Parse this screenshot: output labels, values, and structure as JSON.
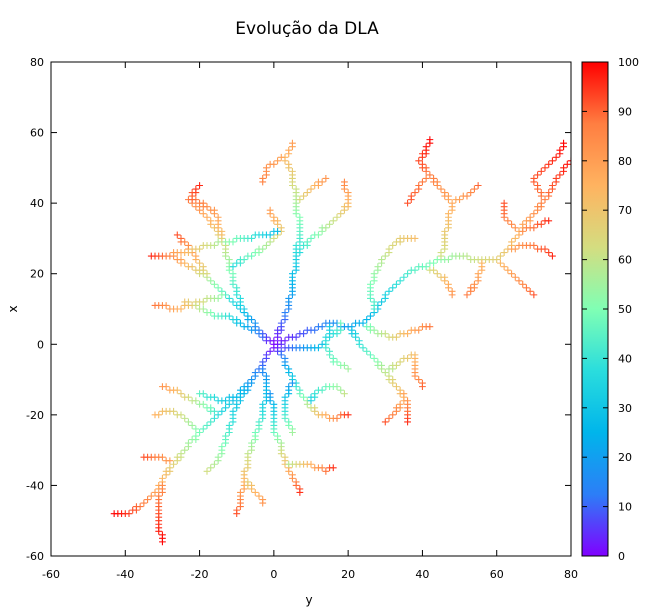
{
  "chart_data": {
    "type": "scatter",
    "title": "Evolução da DLA",
    "xlabel": "y",
    "ylabel": "x",
    "xlim": [
      -60,
      80
    ],
    "ylim": [
      -60,
      80
    ],
    "x_ticks": [
      -60,
      -40,
      -20,
      0,
      20,
      40,
      60,
      80
    ],
    "y_ticks": [
      -60,
      -40,
      -20,
      0,
      20,
      40,
      60,
      80
    ],
    "marker": "+",
    "grid": false,
    "colorbar": {
      "range": [
        0,
        100
      ],
      "ticks": [
        0,
        10,
        20,
        30,
        40,
        50,
        60,
        70,
        80,
        90,
        100
      ],
      "colormap": "rainbow",
      "stops": [
        "#8000ff",
        "#2c7ef7",
        "#00b5eb",
        "#2adddd",
        "#80ffb4",
        "#d4dd80",
        "#ffb360",
        "#ff7e41",
        "#ff0000"
      ]
    },
    "branches": [
      {
        "path": [
          [
            0,
            0
          ],
          [
            -4,
            4
          ],
          [
            -8,
            9
          ],
          [
            -13,
            14
          ],
          [
            -18,
            19
          ],
          [
            -23,
            22
          ],
          [
            -28,
            25
          ],
          [
            -33,
            25
          ]
        ],
        "t0": 0,
        "t1": 96
      },
      {
        "path": [
          [
            -13,
            14
          ],
          [
            -20,
            12
          ],
          [
            -26,
            10
          ],
          [
            -32,
            11
          ]
        ],
        "t0": 50,
        "t1": 88
      },
      {
        "path": [
          [
            -18,
            19
          ],
          [
            -22,
            26
          ],
          [
            -26,
            31
          ]
        ],
        "t0": 62,
        "t1": 92
      },
      {
        "path": [
          [
            -8,
            9
          ],
          [
            -10,
            15
          ],
          [
            -12,
            22
          ],
          [
            -14,
            30
          ],
          [
            -18,
            36
          ],
          [
            -23,
            41
          ],
          [
            -20,
            45
          ]
        ],
        "t0": 30,
        "t1": 96
      },
      {
        "path": [
          [
            -14,
            30
          ],
          [
            -16,
            38
          ],
          [
            -22,
            41
          ]
        ],
        "t0": 70,
        "t1": 90
      },
      {
        "path": [
          [
            -12,
            22
          ],
          [
            -6,
            25
          ],
          [
            -2,
            28
          ],
          [
            2,
            32
          ],
          [
            -1,
            38
          ]
        ],
        "t0": 35,
        "t1": 80
      },
      {
        "path": [
          [
            0,
            0
          ],
          [
            3,
            8
          ],
          [
            5,
            16
          ],
          [
            6,
            25
          ],
          [
            7,
            33
          ],
          [
            6,
            40
          ],
          [
            5,
            48
          ],
          [
            3,
            53
          ],
          [
            5,
            57
          ]
        ],
        "t0": 0,
        "t1": 80
      },
      {
        "path": [
          [
            6,
            25
          ],
          [
            10,
            30
          ],
          [
            15,
            34
          ],
          [
            18,
            37
          ],
          [
            20,
            40
          ],
          [
            19,
            46
          ]
        ],
        "t0": 35,
        "t1": 85
      },
      {
        "path": [
          [
            6,
            40
          ],
          [
            10,
            44
          ],
          [
            14,
            47
          ]
        ],
        "t0": 62,
        "t1": 82
      },
      {
        "path": [
          [
            3,
            53
          ],
          [
            -2,
            50
          ],
          [
            -3,
            46
          ]
        ],
        "t0": 78,
        "t1": 86
      },
      {
        "path": [
          [
            2,
            32
          ],
          [
            -3,
            31
          ],
          [
            -8,
            30
          ],
          [
            -13,
            29
          ],
          [
            -18,
            28
          ],
          [
            -24,
            26
          ],
          [
            -30,
            25
          ]
        ],
        "t0": 25,
        "t1": 85
      },
      {
        "path": [
          [
            0,
            0
          ],
          [
            -4,
            3
          ],
          [
            -8,
            5
          ],
          [
            -12,
            8
          ],
          [
            -16,
            8
          ],
          [
            -20,
            10
          ],
          [
            -24,
            12
          ]
        ],
        "t0": 0,
        "t1": 70
      },
      {
        "path": [
          [
            0,
            0
          ],
          [
            5,
            2
          ],
          [
            10,
            4
          ],
          [
            15,
            6
          ],
          [
            20,
            5
          ],
          [
            24,
            6
          ],
          [
            27,
            9
          ],
          [
            30,
            14
          ],
          [
            33,
            17
          ],
          [
            36,
            20
          ],
          [
            40,
            22
          ],
          [
            45,
            24
          ],
          [
            50,
            25
          ],
          [
            55,
            24
          ],
          [
            60,
            24
          ],
          [
            63,
            27
          ],
          [
            66,
            32
          ],
          [
            70,
            37
          ],
          [
            73,
            41
          ],
          [
            75,
            45
          ],
          [
            78,
            50
          ],
          [
            80,
            52
          ]
        ],
        "t0": 0,
        "t1": 100
      },
      {
        "path": [
          [
            27,
            9
          ],
          [
            26,
            16
          ],
          [
            28,
            22
          ],
          [
            32,
            28
          ],
          [
            35,
            30
          ],
          [
            38,
            30
          ]
        ],
        "t0": 40,
        "t1": 72
      },
      {
        "path": [
          [
            40,
            22
          ],
          [
            44,
            20
          ],
          [
            47,
            17
          ],
          [
            48,
            14
          ]
        ],
        "t0": 58,
        "t1": 82
      },
      {
        "path": [
          [
            45,
            24
          ],
          [
            46,
            30
          ],
          [
            47,
            36
          ],
          [
            48,
            40
          ],
          [
            45,
            44
          ],
          [
            42,
            48
          ],
          [
            39,
            52
          ],
          [
            41,
            55
          ],
          [
            42,
            58
          ]
        ],
        "t0": 60,
        "t1": 100
      },
      {
        "path": [
          [
            48,
            40
          ],
          [
            52,
            42
          ],
          [
            55,
            45
          ]
        ],
        "t0": 76,
        "t1": 90
      },
      {
        "path": [
          [
            42,
            48
          ],
          [
            39,
            45
          ],
          [
            36,
            40
          ]
        ],
        "t0": 86,
        "t1": 92
      },
      {
        "path": [
          [
            60,
            24
          ],
          [
            64,
            20
          ],
          [
            68,
            16
          ],
          [
            70,
            14
          ]
        ],
        "t0": 72,
        "t1": 92
      },
      {
        "path": [
          [
            63,
            27
          ],
          [
            68,
            28
          ],
          [
            72,
            27
          ],
          [
            75,
            25
          ]
        ],
        "t0": 78,
        "t1": 96
      },
      {
        "path": [
          [
            66,
            32
          ],
          [
            70,
            33
          ],
          [
            74,
            35
          ]
        ],
        "t0": 82,
        "t1": 96
      },
      {
        "path": [
          [
            72,
            42
          ],
          [
            70,
            47
          ],
          [
            74,
            51
          ],
          [
            77,
            54
          ],
          [
            78,
            57
          ]
        ],
        "t0": 88,
        "t1": 100
      },
      {
        "path": [
          [
            66,
            32
          ],
          [
            62,
            36
          ],
          [
            62,
            40
          ]
        ],
        "t0": 82,
        "t1": 92
      },
      {
        "path": [
          [
            56,
            24
          ],
          [
            55,
            18
          ],
          [
            52,
            14
          ]
        ],
        "t0": 72,
        "t1": 88
      },
      {
        "path": [
          [
            20,
            5
          ],
          [
            23,
            0
          ],
          [
            27,
            -4
          ],
          [
            30,
            -8
          ],
          [
            33,
            -12
          ],
          [
            35,
            -16
          ],
          [
            32,
            -20
          ],
          [
            30,
            -22
          ]
        ],
        "t0": 28,
        "t1": 92
      },
      {
        "path": [
          [
            30,
            -8
          ],
          [
            34,
            -5
          ],
          [
            38,
            -3
          ],
          [
            38,
            -9
          ],
          [
            40,
            -12
          ]
        ],
        "t0": 55,
        "t1": 90
      },
      {
        "path": [
          [
            33,
            -12
          ],
          [
            36,
            -17
          ],
          [
            36,
            -22
          ]
        ],
        "t0": 72,
        "t1": 95
      },
      {
        "path": [
          [
            24,
            6
          ],
          [
            28,
            3
          ],
          [
            32,
            2
          ],
          [
            38,
            4
          ],
          [
            42,
            5
          ]
        ],
        "t0": 45,
        "t1": 88
      },
      {
        "path": [
          [
            15,
            6
          ],
          [
            14,
            0
          ],
          [
            16,
            -5
          ],
          [
            20,
            -7
          ]
        ],
        "t0": 30,
        "t1": 55
      },
      {
        "path": [
          [
            0,
            0
          ],
          [
            -3,
            -5
          ],
          [
            -6,
            -10
          ],
          [
            -10,
            -15
          ],
          [
            -15,
            -20
          ],
          [
            -20,
            -25
          ],
          [
            -24,
            -30
          ],
          [
            -27,
            -34
          ],
          [
            -30,
            -38
          ],
          [
            -32,
            -42
          ],
          [
            -35,
            -45
          ],
          [
            -39,
            -48
          ],
          [
            -43,
            -48
          ]
        ],
        "t0": 0,
        "t1": 100
      },
      {
        "path": [
          [
            -27,
            -34
          ],
          [
            -31,
            -32
          ],
          [
            -35,
            -32
          ]
        ],
        "t0": 78,
        "t1": 92
      },
      {
        "path": [
          [
            -30,
            -38
          ],
          [
            -31,
            -46
          ],
          [
            -31,
            -52
          ],
          [
            -30,
            -56
          ]
        ],
        "t0": 82,
        "t1": 100
      },
      {
        "path": [
          [
            -15,
            -20
          ],
          [
            -20,
            -17
          ],
          [
            -24,
            -15
          ],
          [
            -27,
            -13
          ],
          [
            -30,
            -12
          ]
        ],
        "t0": 40,
        "t1": 82
      },
      {
        "path": [
          [
            -20,
            -25
          ],
          [
            -24,
            -21
          ],
          [
            -28,
            -19
          ],
          [
            -32,
            -20
          ]
        ],
        "t0": 50,
        "t1": 75
      },
      {
        "path": [
          [
            -10,
            -15
          ],
          [
            -14,
            -16
          ],
          [
            -20,
            -14
          ]
        ],
        "t0": 25,
        "t1": 45
      },
      {
        "path": [
          [
            -6,
            -10
          ],
          [
            -10,
            -17
          ],
          [
            -12,
            -24
          ],
          [
            -14,
            -30
          ],
          [
            -16,
            -34
          ],
          [
            -18,
            -36
          ]
        ],
        "t0": 18,
        "t1": 62
      },
      {
        "path": [
          [
            -3,
            -5
          ],
          [
            -2,
            -12
          ],
          [
            -3,
            -20
          ],
          [
            -5,
            -26
          ],
          [
            -7,
            -32
          ],
          [
            -8,
            -38
          ],
          [
            -9,
            -44
          ],
          [
            -10,
            -48
          ]
        ],
        "t0": 10,
        "t1": 92
      },
      {
        "path": [
          [
            -8,
            -38
          ],
          [
            -5,
            -42
          ],
          [
            -3,
            -45
          ]
        ],
        "t0": 65,
        "t1": 82
      },
      {
        "path": [
          [
            0,
            0
          ],
          [
            3,
            -5
          ],
          [
            5,
            -10
          ],
          [
            7,
            -14
          ],
          [
            9,
            -17
          ],
          [
            12,
            -20
          ],
          [
            16,
            -21
          ],
          [
            20,
            -20
          ]
        ],
        "t0": 0,
        "t1": 95
      },
      {
        "path": [
          [
            5,
            -10
          ],
          [
            3,
            -16
          ],
          [
            3,
            -21
          ],
          [
            5,
            -25
          ]
        ],
        "t0": 15,
        "t1": 55
      },
      {
        "path": [
          [
            9,
            -17
          ],
          [
            12,
            -13
          ],
          [
            16,
            -12
          ],
          [
            19,
            -14
          ]
        ],
        "t0": 30,
        "t1": 60
      },
      {
        "path": [
          [
            -2,
            -12
          ],
          [
            0,
            -18
          ],
          [
            0,
            -24
          ],
          [
            2,
            -29
          ],
          [
            3,
            -34
          ],
          [
            5,
            -38
          ],
          [
            7,
            -42
          ]
        ],
        "t0": 12,
        "t1": 95
      },
      {
        "path": [
          [
            3,
            -34
          ],
          [
            8,
            -34
          ],
          [
            12,
            -35
          ],
          [
            14,
            -36
          ],
          [
            16,
            -35
          ]
        ],
        "t0": 55,
        "t1": 95
      },
      {
        "path": [
          [
            0,
            0
          ],
          [
            4,
            -1
          ],
          [
            8,
            -1
          ],
          [
            12,
            -1
          ],
          [
            15,
            2
          ],
          [
            18,
            4
          ],
          [
            18,
            6
          ]
        ],
        "t0": 0,
        "t1": 48
      }
    ]
  }
}
